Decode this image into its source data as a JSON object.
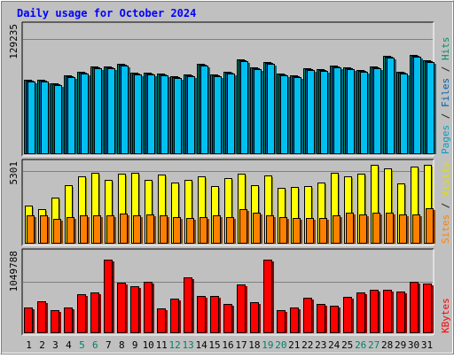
{
  "chart_data": [
    {
      "type": "bar",
      "title": "Daily usage for October 2024",
      "ylabel_parts": [
        {
          "text": "Pages",
          "color": "#00a0c8"
        },
        {
          "text": " / ",
          "color": "#202020"
        },
        {
          "text": "Files",
          "color": "#0060b0"
        },
        {
          "text": " / ",
          "color": "#202020"
        },
        {
          "text": "Hits",
          "color": "#00906c"
        }
      ],
      "ytick": "129235",
      "yticks_values": [
        129235
      ],
      "ylim": [
        0,
        144000
      ],
      "categories": [
        "1",
        "2",
        "3",
        "4",
        "5",
        "6",
        "7",
        "8",
        "9",
        "10",
        "11",
        "12",
        "13",
        "14",
        "15",
        "16",
        "17",
        "18",
        "19",
        "20",
        "21",
        "22",
        "23",
        "24",
        "25",
        "26",
        "27",
        "28",
        "29",
        "30",
        "31"
      ],
      "weekend_days": [
        "5",
        "6",
        "12",
        "13",
        "19",
        "20",
        "26",
        "27"
      ],
      "series": [
        {
          "name": "Hits",
          "color": "#00906c",
          "values": [
            83000,
            83500,
            79000,
            88000,
            92000,
            98000,
            98500,
            101000,
            91000,
            91000,
            90500,
            87000,
            89000,
            101000,
            89500,
            92000,
            106000,
            97000,
            103000,
            90000,
            88500,
            96000,
            95000,
            99000,
            97500,
            94000,
            98500,
            110000,
            92500,
            111500,
            105000
          ]
        },
        {
          "name": "Files",
          "color": "#0060b0",
          "values": [
            82000,
            82500,
            78000,
            87000,
            91000,
            97000,
            97500,
            100000,
            90000,
            90000,
            89500,
            86000,
            88000,
            100000,
            88500,
            91000,
            105000,
            96000,
            102000,
            89000,
            87500,
            95000,
            94000,
            98000,
            96500,
            93000,
            97500,
            109000,
            91500,
            110500,
            104000
          ]
        },
        {
          "name": "Pages",
          "color": "#00c0f0",
          "values": [
            81000,
            81500,
            77000,
            86000,
            90000,
            96000,
            96500,
            99000,
            89000,
            89000,
            88500,
            85000,
            87000,
            99000,
            87500,
            90000,
            104000,
            95000,
            101000,
            88000,
            86500,
            94000,
            93000,
            97000,
            95500,
            92000,
            96500,
            108000,
            90500,
            109500,
            103000
          ]
        }
      ]
    },
    {
      "type": "bar",
      "ylabel_parts": [
        {
          "text": "Sites",
          "color": "#ff8000"
        },
        {
          "text": " / ",
          "color": "#202020"
        },
        {
          "text": "Visits",
          "color": "#e0e000"
        }
      ],
      "ytick": "5301",
      "yticks_values": [
        5301
      ],
      "ylim": [
        0,
        5900
      ],
      "categories": [
        "1",
        "2",
        "3",
        "4",
        "5",
        "6",
        "7",
        "8",
        "9",
        "10",
        "11",
        "12",
        "13",
        "14",
        "15",
        "16",
        "17",
        "18",
        "19",
        "20",
        "21",
        "22",
        "23",
        "24",
        "25",
        "26",
        "27",
        "28",
        "29",
        "30",
        "31"
      ],
      "series": [
        {
          "name": "Visits",
          "color": "#ffff00",
          "values": [
            2800,
            2550,
            3350,
            4300,
            4900,
            5200,
            4700,
            5150,
            5200,
            4650,
            5050,
            4500,
            4700,
            4950,
            4200,
            4800,
            5100,
            4300,
            5000,
            4100,
            4150,
            4200,
            4450,
            5200,
            4900,
            5150,
            5800,
            5500,
            4400,
            5650,
            5800
          ]
        },
        {
          "name": "Sites",
          "color": "#ff8000",
          "values": [
            2100,
            2050,
            1790,
            1950,
            2050,
            2100,
            2080,
            2200,
            2050,
            2150,
            2100,
            1950,
            1850,
            1950,
            2050,
            1950,
            2550,
            2250,
            2050,
            1950,
            1850,
            1850,
            1850,
            2100,
            2250,
            2150,
            2250,
            2300,
            2150,
            2150,
            2600
          ]
        }
      ]
    },
    {
      "type": "bar",
      "ylabel_parts": [
        {
          "text": "KBytes",
          "color": "#ff0000"
        }
      ],
      "ytick": "1049788",
      "yticks_values": [
        1049788
      ],
      "ylim": [
        0,
        1650000
      ],
      "categories": [
        "1",
        "2",
        "3",
        "4",
        "5",
        "6",
        "7",
        "8",
        "9",
        "10",
        "11",
        "12",
        "13",
        "14",
        "15",
        "16",
        "17",
        "18",
        "19",
        "20",
        "21",
        "22",
        "23",
        "24",
        "25",
        "26",
        "27",
        "28",
        "29",
        "30",
        "31"
      ],
      "series": [
        {
          "name": "KBytes",
          "color": "#ff0000",
          "values": [
            520000,
            660000,
            470000,
            530000,
            800000,
            830000,
            1510000,
            1040000,
            970000,
            1050000,
            500000,
            710000,
            1150000,
            760000,
            760000,
            590000,
            990000,
            630000,
            1510000,
            480000,
            520000,
            720000,
            590000,
            560000,
            740000,
            830000,
            880000,
            880000,
            850000,
            1050000,
            1020000
          ]
        }
      ]
    }
  ]
}
